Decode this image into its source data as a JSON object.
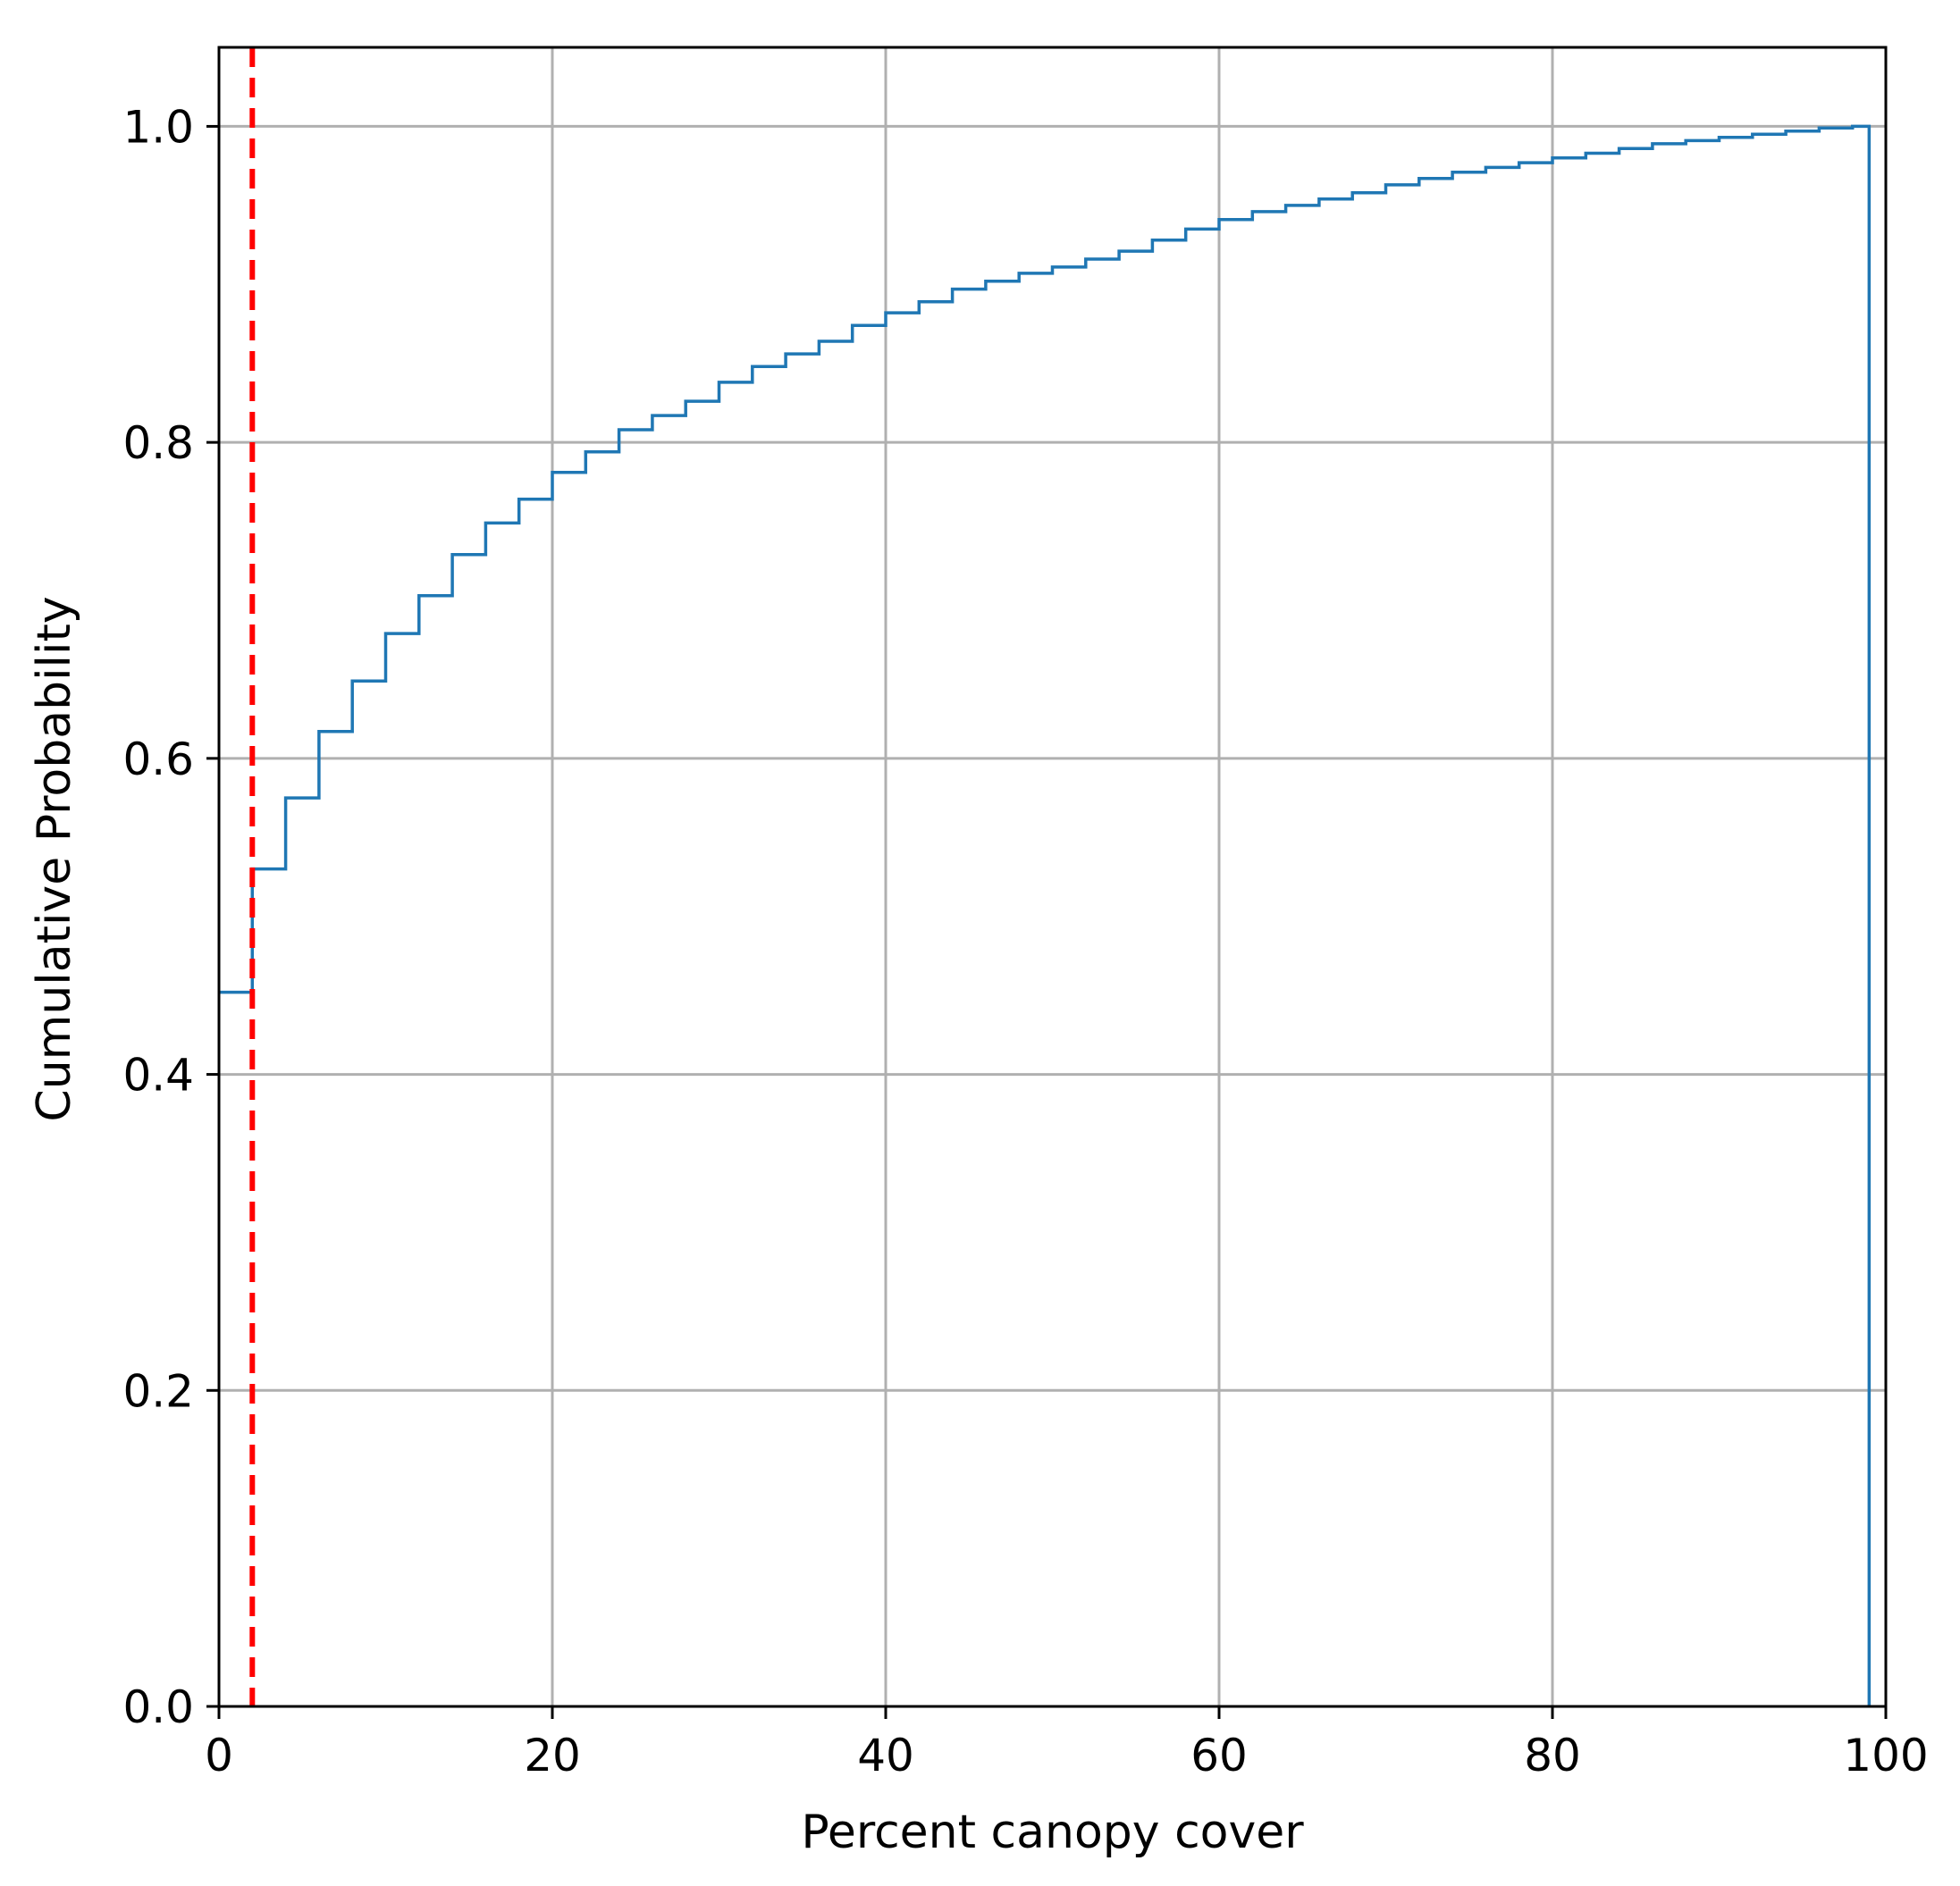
{
  "chart_data": {
    "type": "line",
    "step": true,
    "title": "",
    "xlabel": "Percent canopy cover",
    "ylabel": "Cumulative Probability",
    "xlim": [
      0,
      100
    ],
    "ylim": [
      0,
      1.05
    ],
    "xticks": [
      0,
      20,
      40,
      60,
      80,
      100
    ],
    "xtick_labels": [
      "0",
      "20",
      "40",
      "60",
      "80",
      "100"
    ],
    "yticks": [
      0,
      0.2,
      0.4,
      0.6,
      0.8,
      1.0
    ],
    "ytick_labels": [
      "0.0",
      "0.2",
      "0.4",
      "0.6",
      "0.8",
      "1.0"
    ],
    "grid": true,
    "legend": "none",
    "series": [
      {
        "color": "#1f77b4",
        "x": [
          0,
          2,
          4,
          6,
          8,
          10,
          12,
          14,
          16,
          18,
          20,
          22,
          24,
          26,
          28,
          30,
          32,
          34,
          36,
          38,
          40,
          42,
          44,
          46,
          48,
          50,
          52,
          54,
          56,
          58,
          60,
          62,
          64,
          66,
          68,
          70,
          72,
          74,
          76,
          78,
          80,
          82,
          84,
          86,
          88,
          90,
          92,
          94,
          96,
          98,
          99
        ],
        "y": [
          0.452,
          0.53,
          0.575,
          0.617,
          0.649,
          0.679,
          0.703,
          0.729,
          0.749,
          0.764,
          0.781,
          0.794,
          0.808,
          0.817,
          0.826,
          0.838,
          0.848,
          0.856,
          0.864,
          0.874,
          0.882,
          0.889,
          0.897,
          0.902,
          0.907,
          0.911,
          0.916,
          0.921,
          0.928,
          0.935,
          0.941,
          0.946,
          0.95,
          0.954,
          0.958,
          0.963,
          0.967,
          0.971,
          0.974,
          0.977,
          0.98,
          0.983,
          0.986,
          0.989,
          0.991,
          0.993,
          0.995,
          0.997,
          0.999,
          1.0,
          0.0
        ]
      }
    ],
    "reference_line": {
      "orientation": "vertical",
      "x": 2,
      "style": "dashed",
      "color": "#ff0000"
    },
    "colors": {
      "grid": "#b0b0b0",
      "axes": "#000000"
    }
  }
}
